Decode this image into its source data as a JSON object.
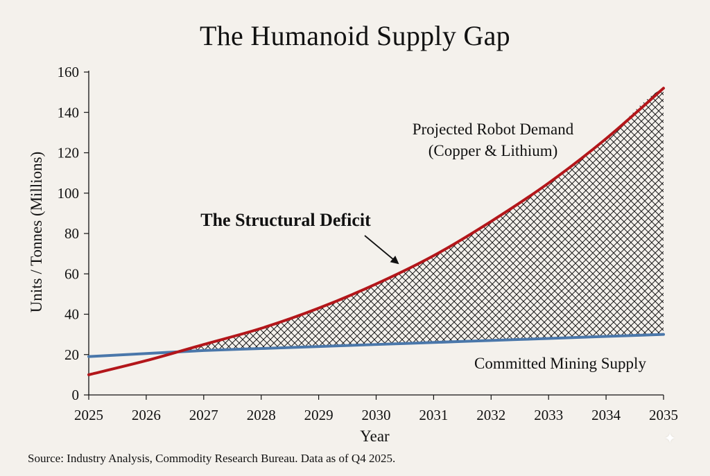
{
  "title": "The Humanoid Supply Gap",
  "source": "Source: Industry Analysis, Commodity Research Bureau. Data as of Q4 2025.",
  "colors": {
    "background": "#f4f1ec",
    "demand_line": "#b3161a",
    "supply_line": "#4a77aa",
    "hatch": "#1a1a1a",
    "axis": "#111111"
  },
  "chart_data": {
    "type": "line",
    "title": "The Humanoid Supply Gap",
    "xlabel": "Year",
    "ylabel": "Units / Tonnes (Millions)",
    "xlim": [
      2025,
      2035
    ],
    "ylim": [
      0,
      160
    ],
    "x_ticks": [
      2025,
      2026,
      2027,
      2028,
      2029,
      2030,
      2031,
      2032,
      2033,
      2034,
      2035
    ],
    "y_ticks": [
      0,
      20,
      40,
      60,
      80,
      100,
      120,
      140,
      160
    ],
    "grid": false,
    "x": [
      2025,
      2026,
      2027,
      2028,
      2029,
      2030,
      2031,
      2032,
      2033,
      2034,
      2035
    ],
    "series": [
      {
        "name": "Projected Robot Demand (Copper & Lithium)",
        "color": "#b3161a",
        "values": [
          10,
          17,
          25,
          33,
          43,
          55,
          69,
          86,
          105,
          127,
          152
        ]
      },
      {
        "name": "Committed Mining Supply",
        "color": "#4a77aa",
        "values": [
          19,
          20.5,
          22,
          23,
          24,
          25,
          26,
          27,
          28,
          29,
          30
        ]
      }
    ],
    "shaded_region": {
      "label": "The Structural Deficit",
      "between": [
        "Projected Robot Demand (Copper & Lithium)",
        "Committed Mining Supply"
      ],
      "pattern": "crosshatch"
    },
    "annotations": {
      "demand_label_line1": "Projected Robot Demand",
      "demand_label_line2": "(Copper & Lithium)",
      "supply_label": "Committed Mining Supply",
      "deficit_label": "The Structural Deficit"
    }
  }
}
